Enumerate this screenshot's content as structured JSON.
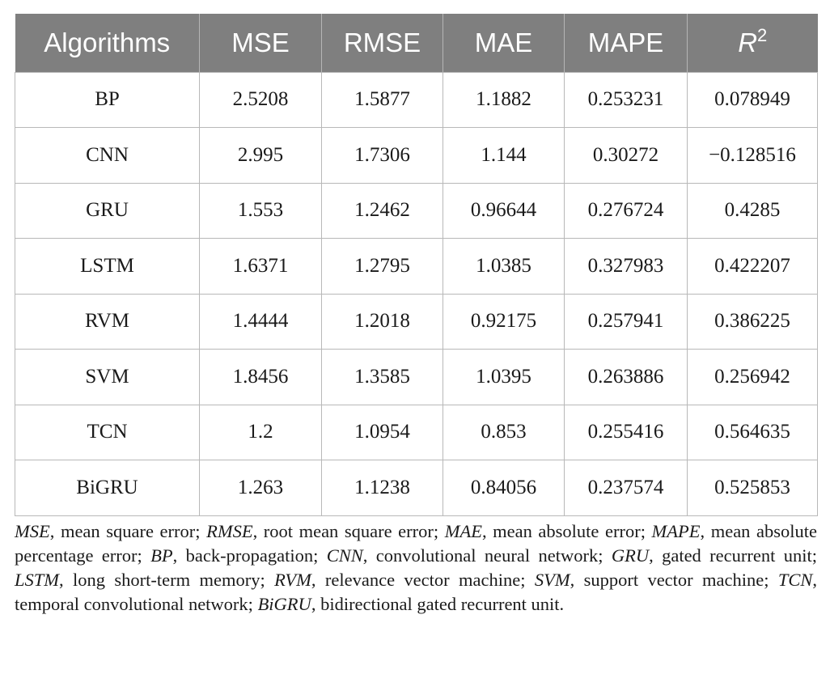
{
  "table": {
    "headers": [
      "Algorithms",
      "MSE",
      "RMSE",
      "MAE",
      "MAPE",
      "R",
      "2"
    ],
    "rows": [
      [
        "BP",
        "2.5208",
        "1.5877",
        "1.1882",
        "0.253231",
        "0.078949"
      ],
      [
        "CNN",
        "2.995",
        "1.7306",
        "1.144",
        "0.30272",
        "−0.128516"
      ],
      [
        "GRU",
        "1.553",
        "1.2462",
        "0.96644",
        "0.276724",
        "0.4285"
      ],
      [
        "LSTM",
        "1.6371",
        "1.2795",
        "1.0385",
        "0.327983",
        "0.422207"
      ],
      [
        "RVM",
        "1.4444",
        "1.2018",
        "0.92175",
        "0.257941",
        "0.386225"
      ],
      [
        "SVM",
        "1.8456",
        "1.3585",
        "1.0395",
        "0.263886",
        "0.256942"
      ],
      [
        "TCN",
        "1.2",
        "1.0954",
        "0.853",
        "0.255416",
        "0.564635"
      ],
      [
        "BiGRU",
        "1.263",
        "1.1238",
        "0.84056",
        "0.237574",
        "0.525853"
      ]
    ]
  },
  "footnote": [
    {
      "abbr": "MSE",
      "text": ", mean square error; "
    },
    {
      "abbr": "RMSE",
      "text": ", root mean square error; "
    },
    {
      "abbr": "MAE",
      "text": ", mean absolute error; "
    },
    {
      "abbr": "MAPE",
      "text": ", mean absolute percentage error; "
    },
    {
      "abbr": "BP",
      "text": ", back-propagation; "
    },
    {
      "abbr": "CNN",
      "text": ", convolutional neural network; "
    },
    {
      "abbr": "GRU",
      "text": ", gated recurrent unit; "
    },
    {
      "abbr": "LSTM",
      "text": ", long short-term memory; "
    },
    {
      "abbr": "RVM",
      "text": ", relevance vector machine; "
    },
    {
      "abbr": "SVM",
      "text": ", support vector machine; "
    },
    {
      "abbr": "TCN",
      "text": ", temporal convolutional network; "
    },
    {
      "abbr": "BiGRU",
      "text": ", bidirectional gated recurrent unit."
    }
  ],
  "colors": {
    "header_bg": "#7f7f7f",
    "header_text": "#ffffff",
    "grid": "#b8b8b8"
  }
}
